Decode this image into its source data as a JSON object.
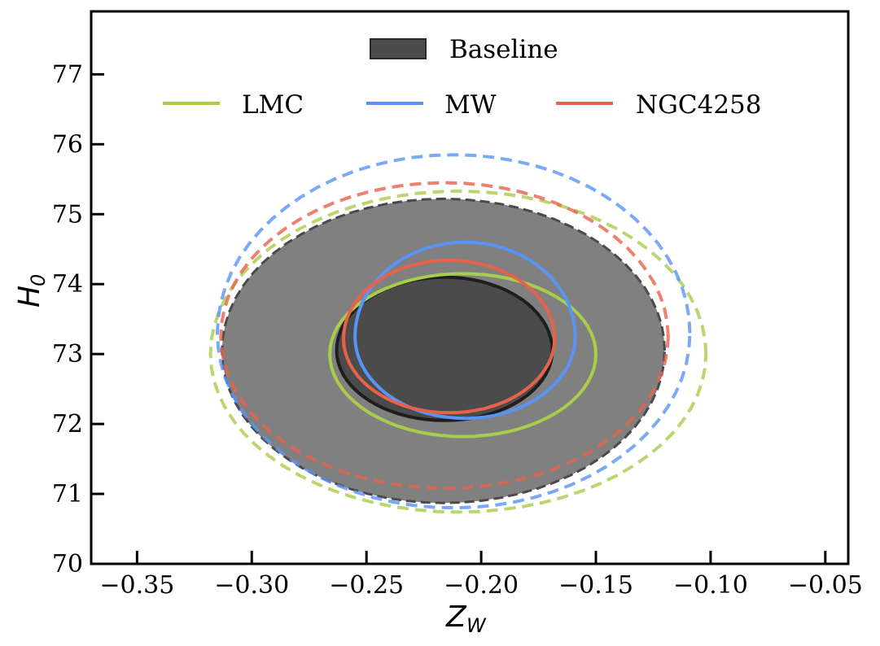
{
  "chart_data": {
    "type": "contour",
    "title": "",
    "xlabel": {
      "main": "Z",
      "sub": "W"
    },
    "ylabel": {
      "main": "H",
      "sub": "0"
    },
    "xlim": [
      -0.37,
      -0.04
    ],
    "ylim": [
      70,
      77.9
    ],
    "xticks": [
      -0.35,
      -0.3,
      -0.25,
      -0.2,
      -0.15,
      -0.1,
      -0.05
    ],
    "xtick_labels": [
      "−0.35",
      "−0.30",
      "−0.25",
      "−0.20",
      "−0.15",
      "−0.10",
      "−0.05"
    ],
    "yticks": [
      70,
      71,
      72,
      73,
      74,
      75,
      76,
      77
    ],
    "ytick_labels": [
      "70",
      "71",
      "72",
      "73",
      "74",
      "75",
      "76",
      "77"
    ],
    "legend": {
      "placement": "top-center",
      "entries": [
        {
          "label": "Baseline",
          "style": "filled",
          "color": "#4b4b4b"
        },
        {
          "label": "LMC",
          "style": "line",
          "color": "#a9cc4a"
        },
        {
          "label": "MW",
          "style": "line",
          "color": "#5994f5"
        },
        {
          "label": "NGC4258",
          "style": "line",
          "color": "#e7624b"
        }
      ]
    },
    "series": [
      {
        "name": "Baseline",
        "style": "filled",
        "color_outer": "#808080",
        "color_inner": "#4b4b4b",
        "contours": [
          {
            "level": "68%",
            "center": [
              -0.216,
              73.05
            ],
            "rx": 0.047,
            "ry_up": 1.05,
            "ry_down": 1.0
          },
          {
            "level": "95%",
            "center": [
              -0.2165,
              73.05
            ],
            "rx": 0.0965,
            "ry_up": 2.17,
            "ry_down": 2.18
          }
        ]
      },
      {
        "name": "LMC",
        "style": "line",
        "color": "#a9cc4a",
        "contours": [
          {
            "level": "68%",
            "center": [
              -0.208,
              73.0
            ],
            "rx": 0.058,
            "ry_up": 1.15,
            "ry_down": 1.18
          },
          {
            "level": "95%",
            "center": [
              -0.21,
              73.0
            ],
            "rx": 0.108,
            "ry_up": 2.33,
            "ry_down": 2.26
          }
        ]
      },
      {
        "name": "MW",
        "style": "line",
        "color": "#5994f5",
        "contours": [
          {
            "level": "68%",
            "center": [
              -0.207,
              73.25
            ],
            "rx": 0.048,
            "ry_up": 1.35,
            "ry_down": 1.17
          },
          {
            "level": "95%",
            "center": [
              -0.212,
              73.3
            ],
            "rx": 0.103,
            "ry_up": 2.55,
            "ry_down": 2.5
          }
        ]
      },
      {
        "name": "NGC4258",
        "style": "line",
        "color": "#e7624b",
        "contours": [
          {
            "level": "68%",
            "center": [
              -0.214,
              73.22
            ],
            "rx": 0.046,
            "ry_up": 1.12,
            "ry_down": 1.06
          },
          {
            "level": "95%",
            "center": [
              -0.216,
              73.25
            ],
            "rx": 0.0975,
            "ry_up": 2.2,
            "ry_down": 2.17
          }
        ]
      }
    ]
  }
}
